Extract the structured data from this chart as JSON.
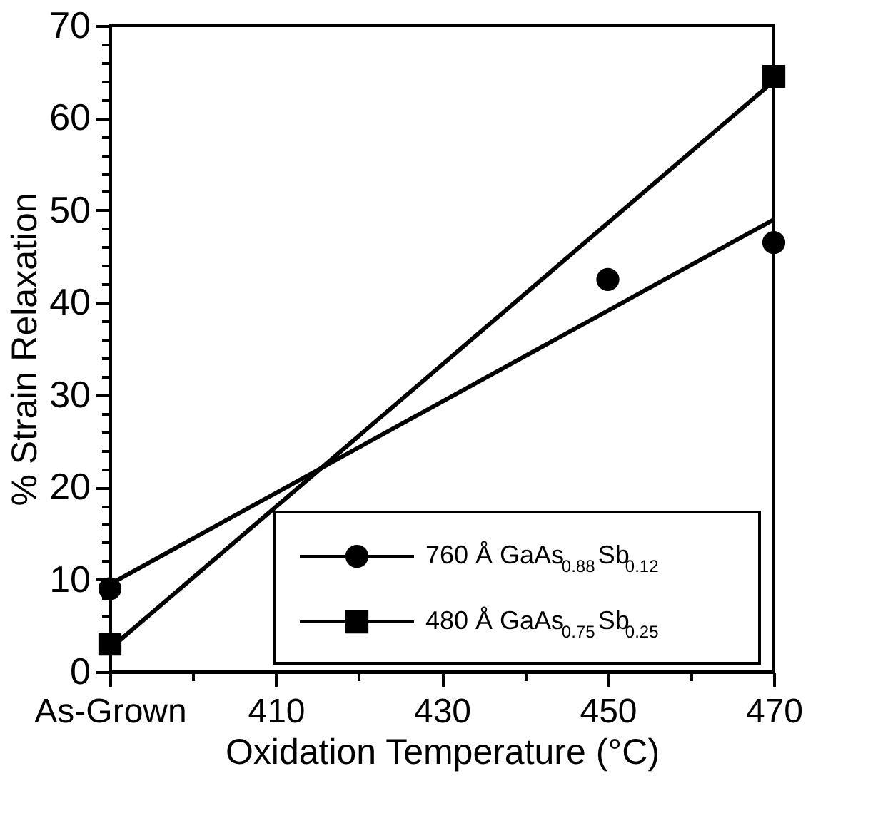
{
  "chart_data": {
    "type": "scatter",
    "xlabel": "Oxidation Temperature (°C)",
    "ylabel": "% Strain Relaxation",
    "xlim": [
      390,
      470
    ],
    "xticks": [
      {
        "value": 390,
        "label": "As-Grown"
      },
      {
        "value": 400,
        "label": null
      },
      410,
      {
        "value": 420,
        "label": null
      },
      430,
      {
        "value": 440,
        "label": null
      },
      450,
      {
        "value": 460,
        "label": null
      },
      470
    ],
    "ylim": [
      0,
      70
    ],
    "yticks": [
      0,
      {
        "value": 2,
        "label": null
      },
      {
        "value": 4,
        "label": null
      },
      {
        "value": 6,
        "label": null
      },
      {
        "value": 8,
        "label": null
      },
      10,
      {
        "value": 12,
        "label": null
      },
      {
        "value": 14,
        "label": null
      },
      {
        "value": 16,
        "label": null
      },
      {
        "value": 18,
        "label": null
      },
      20,
      {
        "value": 22,
        "label": null
      },
      {
        "value": 24,
        "label": null
      },
      {
        "value": 26,
        "label": null
      },
      {
        "value": 28,
        "label": null
      },
      30,
      {
        "value": 32,
        "label": null
      },
      {
        "value": 34,
        "label": null
      },
      {
        "value": 36,
        "label": null
      },
      {
        "value": 38,
        "label": null
      },
      40,
      {
        "value": 42,
        "label": null
      },
      {
        "value": 44,
        "label": null
      },
      {
        "value": 46,
        "label": null
      },
      {
        "value": 48,
        "label": null
      },
      50,
      {
        "value": 52,
        "label": null
      },
      {
        "value": 54,
        "label": null
      },
      {
        "value": 56,
        "label": null
      },
      {
        "value": 58,
        "label": null
      },
      60,
      {
        "value": 62,
        "label": null
      },
      {
        "value": 64,
        "label": null
      },
      {
        "value": 66,
        "label": null
      },
      {
        "value": 68,
        "label": null
      },
      70
    ],
    "grid": false,
    "legend": "bottom right",
    "series": [
      {
        "name": "760 Å GaAs$_{0.88}$Sb$_{0.12}$",
        "type": "scatter",
        "marker": "circle",
        "color": "#000000",
        "x": [
          390,
          450,
          470
        ],
        "values": [
          9,
          42.5,
          46.5
        ]
      },
      {
        "type": "line",
        "color": "#000000",
        "x": [
          390,
          470
        ],
        "values": [
          9.5,
          49
        ]
      },
      {
        "name": "480 Å GaAs$_{0.75}$Sb$_{0.25}$",
        "type": "scatter",
        "marker": "square",
        "color": "#000000",
        "x": [
          390,
          470
        ],
        "values": [
          3,
          64.5
        ]
      },
      {
        "type": "line",
        "color": "#000000",
        "x": [
          390,
          470
        ],
        "values": [
          2.5,
          64
        ]
      }
    ]
  }
}
